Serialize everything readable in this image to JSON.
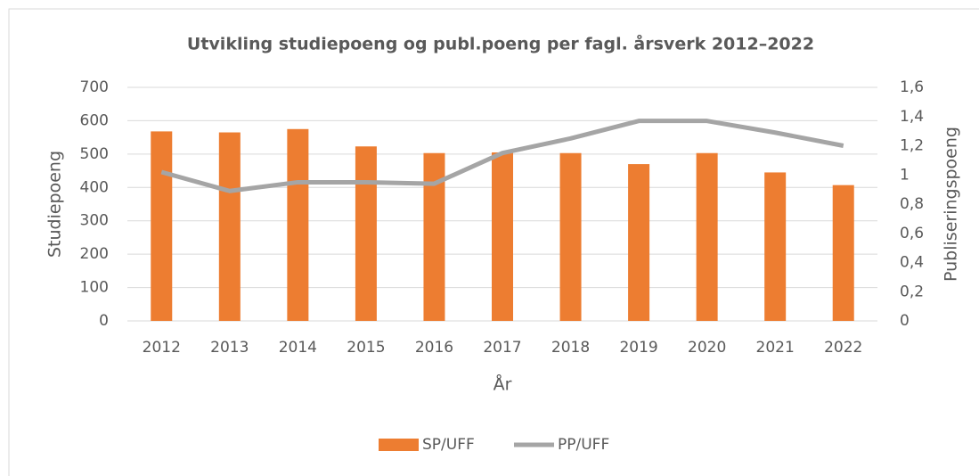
{
  "chart_data": {
    "type": "bar_line",
    "title": "Utvikling studiepoeng og publ.poeng per fagl. årsverk 2012–2022",
    "x_label": "År",
    "y_label": "Studiepoeng",
    "y2_label": "Publiseringspoeng",
    "categories": [
      "2012",
      "2013",
      "2014",
      "2015",
      "2016",
      "2017",
      "2018",
      "2019",
      "2020",
      "2021",
      "2022"
    ],
    "series": [
      {
        "name": "SP/UFF",
        "type": "bar",
        "color": "#ed7d31",
        "values": [
          568,
          565,
          575,
          523,
          503,
          505,
          503,
          470,
          503,
          445,
          407
        ]
      },
      {
        "name": "PP/UFF",
        "type": "line",
        "axis": "y2",
        "color": "#a5a5a5",
        "values": [
          1.02,
          0.89,
          0.95,
          0.95,
          0.94,
          1.15,
          1.25,
          1.37,
          1.37,
          1.29,
          1.2
        ]
      }
    ],
    "ylim": [
      0,
      700
    ],
    "yticks": [
      0,
      100,
      200,
      300,
      400,
      500,
      600,
      700
    ],
    "y2lim": [
      0,
      1.6
    ],
    "y2ticks": [
      0,
      {
        "value": 0.2,
        "label": "0,2"
      },
      {
        "value": 0.4,
        "label": "0,4"
      },
      {
        "value": 0.6,
        "label": "0,6"
      },
      {
        "value": 0.8,
        "label": "0,8"
      },
      1,
      {
        "value": 1.2,
        "label": "1,2"
      },
      {
        "value": 1.4,
        "label": "1,4"
      },
      {
        "value": 1.6,
        "label": "1,6"
      }
    ],
    "grid": true,
    "legend": "bottom"
  }
}
